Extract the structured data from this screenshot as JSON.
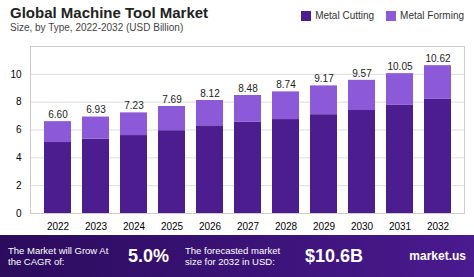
{
  "chart_data": {
    "type": "bar",
    "title": "Global Machine Tool Market",
    "subtitle": "Size, by Type, 2022-2032 (USD Billion)",
    "categories": [
      "2022",
      "2023",
      "2024",
      "2025",
      "2026",
      "2027",
      "2028",
      "2029",
      "2030",
      "2031",
      "2032"
    ],
    "series": [
      {
        "name": "Metal Cutting",
        "color": "#4b1d8f",
        "values": [
          5.1,
          5.35,
          5.6,
          5.95,
          6.3,
          6.55,
          6.75,
          7.1,
          7.4,
          7.8,
          8.2
        ]
      },
      {
        "name": "Metal Forming",
        "color": "#8c5ad8",
        "values": [
          1.5,
          1.58,
          1.63,
          1.74,
          1.82,
          1.93,
          1.99,
          2.07,
          2.17,
          2.25,
          2.42
        ]
      }
    ],
    "totals": [
      6.6,
      6.93,
      7.23,
      7.69,
      8.12,
      8.48,
      8.74,
      9.17,
      9.57,
      10.05,
      10.62
    ],
    "total_labels": [
      "6.60",
      "6.93",
      "7.23",
      "7.69",
      "8.12",
      "8.48",
      "8.74",
      "9.17",
      "9.57",
      "10.05",
      "10.62"
    ],
    "stacked": true,
    "ylim": [
      0,
      12
    ],
    "yticks": [
      0,
      2,
      4,
      6,
      8,
      10
    ],
    "grid": true,
    "legend": "top-right"
  },
  "footer": {
    "cagr_text": "The Market will Grow At the CAGR of:",
    "cagr_value": "5.0%",
    "forecast_text": "The forecasted market size for 2032 in USD:",
    "forecast_value": "$10.6B",
    "brand": "market.us"
  }
}
